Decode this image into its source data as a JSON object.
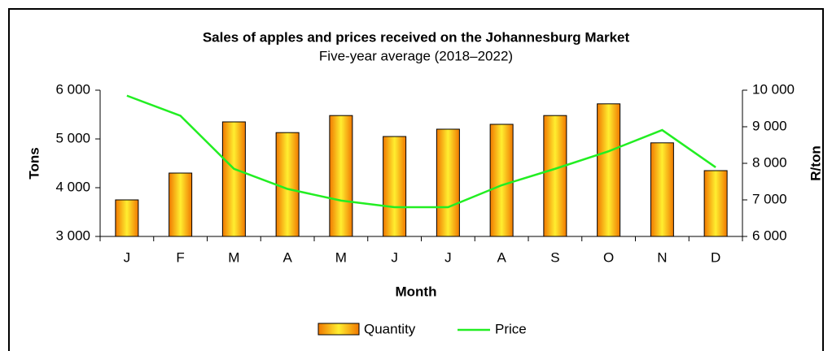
{
  "chart_data": {
    "type": "bar_line",
    "title": "Sales of apples and prices received on the Johannesburg Market",
    "subtitle": "Five-year average (2018–2022)",
    "x_label": "Month",
    "y_label": "Tons",
    "y2_label": "R/ton",
    "categories": [
      "J",
      "F",
      "M",
      "A",
      "M",
      "J",
      "J",
      "A",
      "S",
      "O",
      "N",
      "D"
    ],
    "series": [
      {
        "name": "Quantity",
        "type": "bar",
        "color": "#f59a10",
        "values": [
          3750,
          4300,
          5350,
          5130,
          5480,
          5050,
          5200,
          5300,
          5480,
          5720,
          4920,
          4350
        ]
      },
      {
        "name": "Price",
        "type": "line",
        "axis": "y2",
        "color": "#22ee22",
        "values": [
          9850,
          9300,
          7850,
          7300,
          6980,
          6800,
          6800,
          7400,
          7850,
          8330,
          8910,
          7890
        ]
      }
    ],
    "ylim": [
      3000,
      6000
    ],
    "yticks": [
      {
        "value": 3000,
        "label": "3 000"
      },
      {
        "value": 4000,
        "label": "4 000"
      },
      {
        "value": 5000,
        "label": "5 000"
      },
      {
        "value": 6000,
        "label": "6 000"
      }
    ],
    "y2lim": [
      6000,
      10000
    ],
    "y2ticks": [
      {
        "value": 6000,
        "label": "6 000"
      },
      {
        "value": 7000,
        "label": "7 000"
      },
      {
        "value": 8000,
        "label": "8 000"
      },
      {
        "value": 9000,
        "label": "9 000"
      },
      {
        "value": 10000,
        "label": "10 000"
      }
    ],
    "legend": "bottom"
  }
}
